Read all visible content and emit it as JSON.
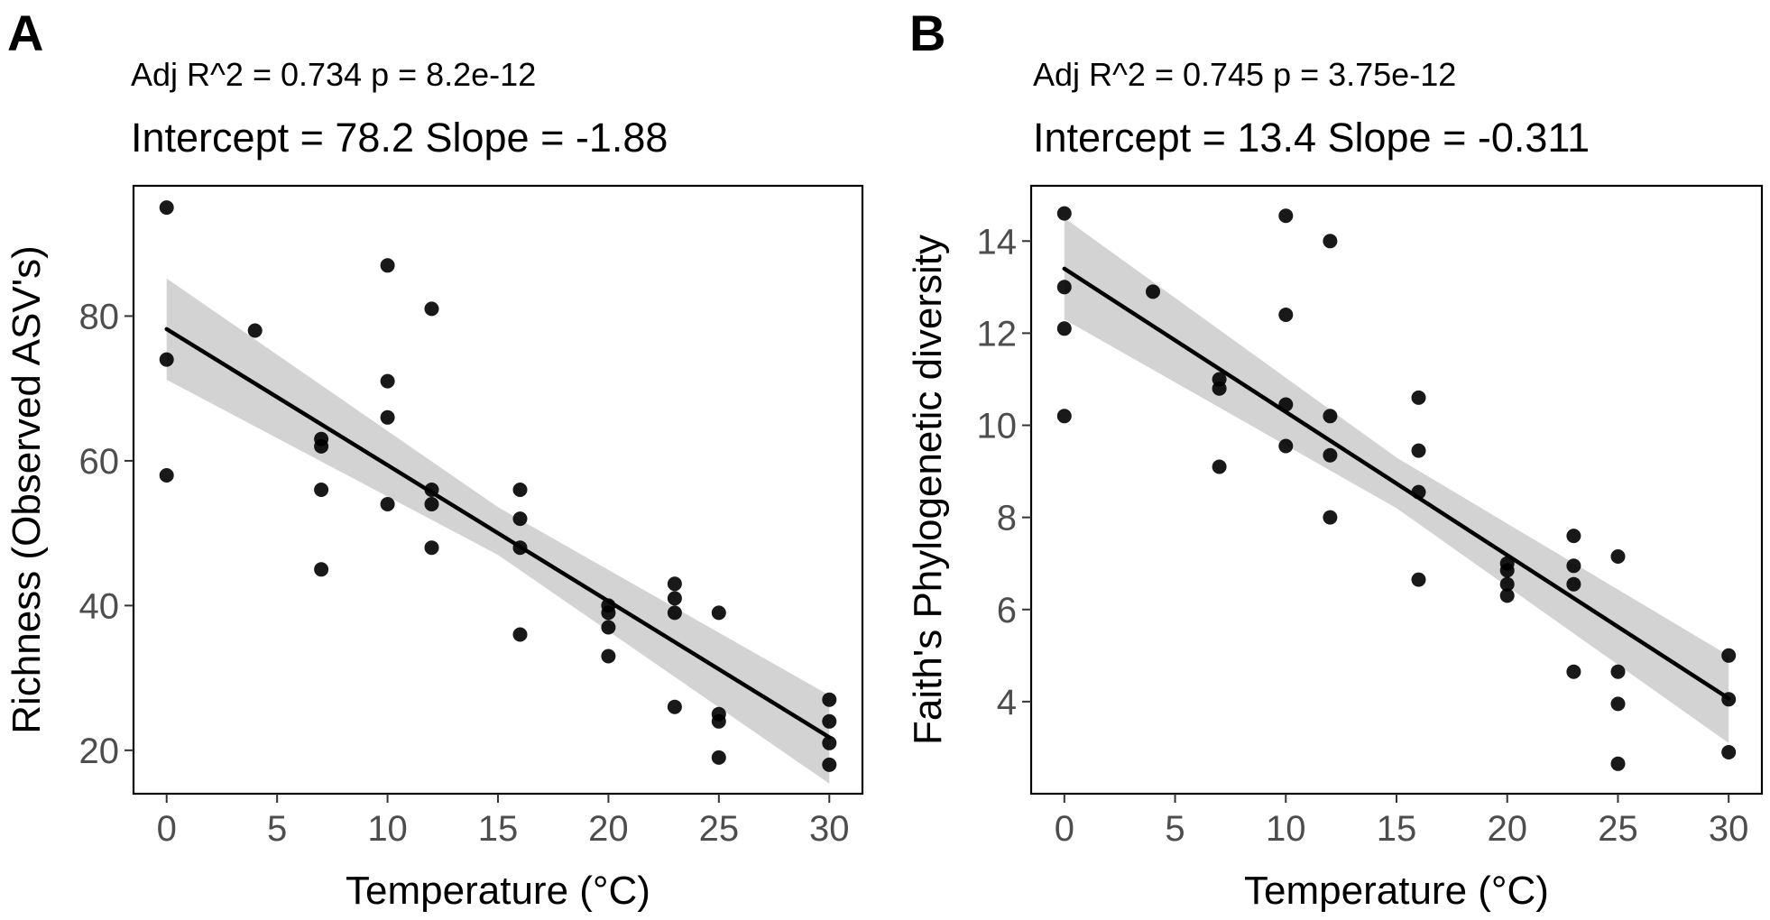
{
  "chart_data": [
    {
      "type": "scatter",
      "panel_label": "A",
      "stat_line_1": "Adj R^2 = 0.734 p = 8.2e-12",
      "stat_line_2": "Intercept = 78.2 Slope = -1.88",
      "xlabel": "Temperature (°C)",
      "ylabel": "Richness (Observed ASV's)",
      "xlim": [
        -1.5,
        31.5
      ],
      "ylim": [
        14,
        98
      ],
      "xticks": [
        0,
        5,
        10,
        15,
        20,
        25,
        30
      ],
      "yticks": [
        20,
        40,
        60,
        80
      ],
      "grid": false,
      "fit": {
        "intercept": 78.2,
        "slope": -1.88,
        "x_range": [
          0,
          30
        ]
      },
      "confidence_band": [
        {
          "x": 0,
          "lower": 71.2,
          "upper": 85.2
        },
        {
          "x": 15,
          "lower": 47.0,
          "upper": 53.6
        },
        {
          "x": 30,
          "lower": 15.4,
          "upper": 27.6
        }
      ],
      "points": [
        {
          "x": 0,
          "y": 95
        },
        {
          "x": 0,
          "y": 74
        },
        {
          "x": 0,
          "y": 58
        },
        {
          "x": 4,
          "y": 78
        },
        {
          "x": 7,
          "y": 63
        },
        {
          "x": 7,
          "y": 62
        },
        {
          "x": 7,
          "y": 56
        },
        {
          "x": 7,
          "y": 45
        },
        {
          "x": 10,
          "y": 87
        },
        {
          "x": 10,
          "y": 71
        },
        {
          "x": 10,
          "y": 66
        },
        {
          "x": 10,
          "y": 54
        },
        {
          "x": 12,
          "y": 81
        },
        {
          "x": 12,
          "y": 56
        },
        {
          "x": 12,
          "y": 54
        },
        {
          "x": 12,
          "y": 48
        },
        {
          "x": 16,
          "y": 56
        },
        {
          "x": 16,
          "y": 52
        },
        {
          "x": 16,
          "y": 48
        },
        {
          "x": 16,
          "y": 36
        },
        {
          "x": 20,
          "y": 40
        },
        {
          "x": 20,
          "y": 39
        },
        {
          "x": 20,
          "y": 37
        },
        {
          "x": 20,
          "y": 33
        },
        {
          "x": 23,
          "y": 43
        },
        {
          "x": 23,
          "y": 41
        },
        {
          "x": 23,
          "y": 39
        },
        {
          "x": 23,
          "y": 26
        },
        {
          "x": 25,
          "y": 39
        },
        {
          "x": 25,
          "y": 25
        },
        {
          "x": 25,
          "y": 24
        },
        {
          "x": 25,
          "y": 19
        },
        {
          "x": 30,
          "y": 27
        },
        {
          "x": 30,
          "y": 24
        },
        {
          "x": 30,
          "y": 21
        },
        {
          "x": 30,
          "y": 18
        }
      ]
    },
    {
      "type": "scatter",
      "panel_label": "B",
      "stat_line_1": "Adj R^2 = 0.745 p = 3.75e-12",
      "stat_line_2": "Intercept = 13.4 Slope = -0.311",
      "xlabel": "Temperature (°C)",
      "ylabel": "Faith's Phylogenetic diversity",
      "xlim": [
        -1.5,
        31.5
      ],
      "ylim": [
        2.0,
        15.2
      ],
      "xticks": [
        0,
        5,
        10,
        15,
        20,
        25,
        30
      ],
      "yticks": [
        4,
        6,
        8,
        10,
        12,
        14
      ],
      "grid": false,
      "fit": {
        "intercept": 13.4,
        "slope": -0.311,
        "x_range": [
          0,
          30
        ]
      },
      "confidence_band": [
        {
          "x": 0,
          "lower": 12.3,
          "upper": 14.5
        },
        {
          "x": 15,
          "lower": 8.2,
          "upper": 9.3
        },
        {
          "x": 30,
          "lower": 3.1,
          "upper": 5.0
        }
      ],
      "points": [
        {
          "x": 0,
          "y": 14.6
        },
        {
          "x": 0,
          "y": 13.0
        },
        {
          "x": 0,
          "y": 12.1
        },
        {
          "x": 0,
          "y": 10.2
        },
        {
          "x": 4,
          "y": 12.9
        },
        {
          "x": 7,
          "y": 11.0
        },
        {
          "x": 7,
          "y": 10.8
        },
        {
          "x": 7,
          "y": 9.1
        },
        {
          "x": 10,
          "y": 14.55
        },
        {
          "x": 10,
          "y": 12.4
        },
        {
          "x": 10,
          "y": 10.45
        },
        {
          "x": 10,
          "y": 9.55
        },
        {
          "x": 12,
          "y": 14.0
        },
        {
          "x": 12,
          "y": 10.2
        },
        {
          "x": 12,
          "y": 9.35
        },
        {
          "x": 12,
          "y": 8.0
        },
        {
          "x": 16,
          "y": 10.6
        },
        {
          "x": 16,
          "y": 9.45
        },
        {
          "x": 16,
          "y": 8.55
        },
        {
          "x": 16,
          "y": 6.65
        },
        {
          "x": 20,
          "y": 7.0
        },
        {
          "x": 20,
          "y": 6.85
        },
        {
          "x": 20,
          "y": 6.55
        },
        {
          "x": 20,
          "y": 6.3
        },
        {
          "x": 23,
          "y": 7.6
        },
        {
          "x": 23,
          "y": 6.95
        },
        {
          "x": 23,
          "y": 6.55
        },
        {
          "x": 23,
          "y": 4.65
        },
        {
          "x": 25,
          "y": 7.15
        },
        {
          "x": 25,
          "y": 4.65
        },
        {
          "x": 25,
          "y": 3.95
        },
        {
          "x": 25,
          "y": 2.65
        },
        {
          "x": 30,
          "y": 5.0
        },
        {
          "x": 30,
          "y": 4.05
        },
        {
          "x": 30,
          "y": 2.9
        }
      ]
    }
  ]
}
